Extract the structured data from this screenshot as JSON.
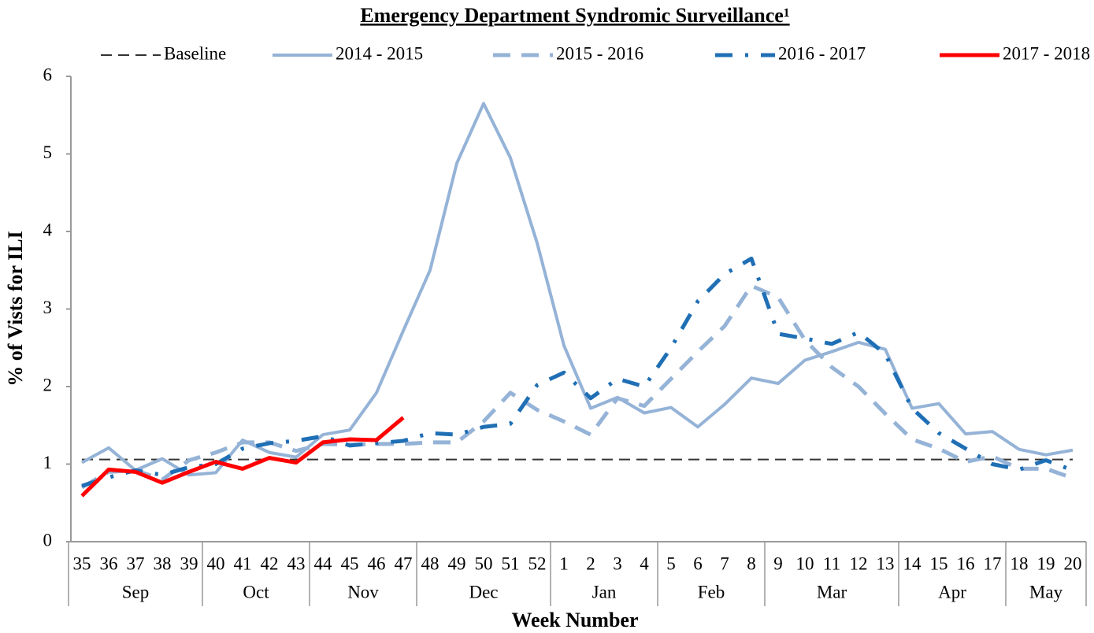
{
  "chart_data": {
    "type": "line",
    "title": "Emergency Department Syndromic Surveillance¹",
    "x_label": "Week Number",
    "y_label": "% of Vists for ILI",
    "categories": [
      "35",
      "36",
      "37",
      "38",
      "39",
      "40",
      "41",
      "42",
      "43",
      "44",
      "45",
      "46",
      "47",
      "48",
      "49",
      "50",
      "51",
      "52",
      "1",
      "2",
      "3",
      "4",
      "5",
      "6",
      "7",
      "8",
      "9",
      "10",
      "11",
      "12",
      "13",
      "14",
      "15",
      "16",
      "17",
      "18",
      "19",
      "20"
    ],
    "groups": [
      {
        "label": "Sep",
        "count": 5
      },
      {
        "label": "Oct",
        "count": 4
      },
      {
        "label": "Nov",
        "count": 4
      },
      {
        "label": "Dec",
        "count": 5
      },
      {
        "label": "Jan",
        "count": 4
      },
      {
        "label": "Feb",
        "count": 4
      },
      {
        "label": "Mar",
        "count": 5
      },
      {
        "label": "Apr",
        "count": 4
      },
      {
        "label": "May",
        "count": 3
      }
    ],
    "ylim": [
      0,
      6
    ],
    "yticks": [
      0,
      1,
      2,
      3,
      4,
      5,
      6
    ],
    "legend": "top",
    "series": [
      {
        "name": "Baseline",
        "color": "#333333",
        "dash": "dashed",
        "values": [
          1.06,
          1.06,
          1.06,
          1.06,
          1.06,
          1.06,
          1.06,
          1.06,
          1.06,
          1.06,
          1.06,
          1.06,
          1.06,
          1.06,
          1.06,
          1.06,
          1.06,
          1.06,
          1.06,
          1.06,
          1.06,
          1.06,
          1.06,
          1.06,
          1.06,
          1.06,
          1.06,
          1.06,
          1.06,
          1.06,
          1.06,
          1.06,
          1.06,
          1.06,
          1.06,
          1.06,
          1.06,
          1.06
        ]
      },
      {
        "name": "2014 - 2015",
        "color": "#95b3d7",
        "dash": "solid",
        "values": [
          1.02,
          1.21,
          0.92,
          1.07,
          0.86,
          0.89,
          1.31,
          1.15,
          1.09,
          1.38,
          1.44,
          1.92,
          2.72,
          3.5,
          4.88,
          5.65,
          4.95,
          3.85,
          2.53,
          1.72,
          1.86,
          1.66,
          1.73,
          1.48,
          1.77,
          2.11,
          2.04,
          2.34,
          2.45,
          2.57,
          2.48,
          1.72,
          1.78,
          1.39,
          1.42,
          1.19,
          1.12,
          1.18
        ]
      },
      {
        "name": "2015 - 2016",
        "color": "#95b3d7",
        "dash": "longdash",
        "values": [
          0.7,
          0.9,
          0.92,
          0.8,
          1.05,
          1.15,
          1.28,
          1.28,
          1.17,
          1.26,
          1.25,
          1.26,
          1.26,
          1.28,
          1.28,
          1.55,
          1.92,
          1.7,
          1.55,
          1.38,
          1.85,
          1.75,
          2.1,
          2.45,
          2.78,
          3.3,
          3.15,
          2.6,
          2.25,
          2.0,
          1.65,
          1.32,
          1.2,
          1.03,
          1.1,
          0.94,
          0.94,
          0.82
        ]
      },
      {
        "name": "2016 - 2017",
        "color": "#1f6fb5",
        "dash": "dashdot",
        "values": [
          0.72,
          0.83,
          0.92,
          0.86,
          0.96,
          1.0,
          1.2,
          1.27,
          1.3,
          1.36,
          1.24,
          1.27,
          1.3,
          1.4,
          1.38,
          1.48,
          1.52,
          2.02,
          2.18,
          1.85,
          2.1,
          2.0,
          2.5,
          3.1,
          3.45,
          3.65,
          2.68,
          2.62,
          2.55,
          2.7,
          2.42,
          1.72,
          1.4,
          1.2,
          1.0,
          0.93,
          1.05,
          0.92
        ]
      },
      {
        "name": "2017 - 2018",
        "color": "#ff0000",
        "dash": "solid",
        "values": [
          0.59,
          0.93,
          0.9,
          0.76,
          0.9,
          1.03,
          0.94,
          1.08,
          1.02,
          1.28,
          1.32,
          1.31,
          1.6,
          null,
          null,
          null,
          null,
          null,
          null,
          null,
          null,
          null,
          null,
          null,
          null,
          null,
          null,
          null,
          null,
          null,
          null,
          null,
          null,
          null,
          null,
          null,
          null,
          null
        ]
      }
    ]
  }
}
